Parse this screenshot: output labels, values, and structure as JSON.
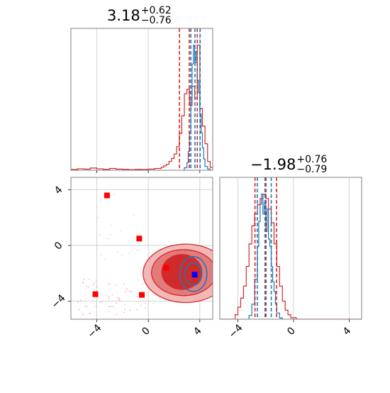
{
  "chart_data": [
    {
      "type": "histogram",
      "panel": "top-left",
      "title": {
        "value": "3.18",
        "upper": "+0.62",
        "lower": "−0.76"
      },
      "xlim": [
        -6,
        5
      ],
      "x_ticks": [
        -4,
        0,
        4
      ],
      "tick_labels_shown": false,
      "grid": true,
      "series": [
        {
          "color": "#d62728",
          "bins": [
            -6,
            -5.5,
            -5,
            -4.5,
            -4,
            -3.5,
            -3,
            -2.5,
            -2,
            -1.5,
            -1,
            -0.5,
            0,
            0.5,
            1,
            1.2,
            1.4,
            1.6,
            1.8,
            2,
            2.2,
            2.4,
            2.6,
            2.8,
            3,
            3.2,
            3.4,
            3.6,
            3.8,
            4,
            4.2,
            4.4,
            4.6,
            4.8,
            5
          ],
          "counts": [
            0.5,
            1,
            0.8,
            1.5,
            1,
            0.6,
            1.2,
            0.8,
            0.6,
            0.4,
            0.6,
            0.5,
            0.8,
            1.2,
            2,
            3,
            4,
            6,
            8,
            11,
            16,
            25,
            37,
            52,
            55,
            44,
            57,
            49,
            85,
            42,
            30,
            18,
            6,
            2
          ]
        },
        {
          "color": "#1f77b4",
          "bins": [
            2.8,
            3,
            3.1,
            3.2,
            3.3,
            3.4,
            3.5,
            3.6,
            3.7,
            3.8,
            3.9,
            4,
            4.1,
            4.2,
            4.3,
            4.4,
            4.6,
            4.8
          ],
          "counts": [
            2,
            6,
            15,
            30,
            58,
            85,
            100,
            86,
            95,
            72,
            62,
            45,
            30,
            18,
            9,
            3,
            1
          ]
        }
      ],
      "quantile_lines": [
        {
          "color": "#d62728",
          "x": [
            2.42,
            3.18,
            3.8
          ]
        },
        {
          "color": "#1f77b4",
          "x": [
            3.3,
            3.62,
            4.02
          ]
        }
      ]
    },
    {
      "type": "scatter",
      "panel": "bottom-left",
      "xlim": [
        -6,
        5
      ],
      "ylim": [
        -5.3,
        4.9
      ],
      "x_ticks": [
        -4,
        0,
        4
      ],
      "x_tick_labels": [
        "−4",
        "0",
        "4"
      ],
      "y_ticks": [
        -4,
        0,
        4
      ],
      "y_tick_labels": [
        "−4",
        "0",
        "4"
      ],
      "grid": true,
      "red_markers": [
        {
          "x": -3.2,
          "y": 3.6
        },
        {
          "x": -0.7,
          "y": 0.5
        },
        {
          "x": 1.4,
          "y": -1.6
        },
        {
          "x": -4.1,
          "y": -3.5
        },
        {
          "x": -0.5,
          "y": -3.55
        }
      ],
      "blue_markers": [
        {
          "x": 3.6,
          "y": -2.1
        }
      ],
      "red_contours": [
        {
          "cx": 2.9,
          "cy": -2.0,
          "rx": 3.3,
          "ry": 2.1,
          "fill": "#f2b8b8"
        },
        {
          "cx": 2.75,
          "cy": -1.95,
          "rx": 2.5,
          "ry": 1.65,
          "fill": "#e47b7b"
        },
        {
          "cx": 2.6,
          "cy": -1.9,
          "rx": 1.55,
          "ry": 1.25,
          "fill": "#cf2b2b"
        }
      ],
      "blue_contours": [
        {
          "cx": 3.5,
          "cy": -2.05,
          "rx": 1.05,
          "ry": 1.25
        },
        {
          "cx": 3.5,
          "cy": -2.05,
          "rx": 0.65,
          "ry": 0.8
        }
      ]
    },
    {
      "type": "histogram",
      "panel": "bottom-right",
      "title": {
        "value": "−1.98",
        "upper": "+0.76",
        "lower": "−0.79"
      },
      "xlim": [
        -5.3,
        4.9
      ],
      "x_ticks": [
        -4,
        0,
        4
      ],
      "x_tick_labels": [
        "−4",
        "0",
        "4"
      ],
      "grid": true,
      "series": [
        {
          "color": "#d62728",
          "bins": [
            -5.3,
            -4.2,
            -4,
            -3.8,
            -3.6,
            -3.4,
            -3.2,
            -3,
            -2.8,
            -2.6,
            -2.4,
            -2.2,
            -2,
            -1.8,
            -1.6,
            -1.4,
            -1.2,
            -1,
            -0.8,
            -0.6,
            -0.4,
            -0.2,
            0.2,
            4.9
          ],
          "counts": [
            0,
            3,
            8,
            14,
            22,
            35,
            50,
            62,
            70,
            76,
            80,
            83,
            80,
            73,
            64,
            50,
            35,
            22,
            12,
            6,
            3,
            1,
            0
          ]
        },
        {
          "color": "#1f77b4",
          "bins": [
            -3.2,
            -3,
            -2.8,
            -2.6,
            -2.5,
            -2.4,
            -2.3,
            -2.2,
            -2.1,
            -2,
            -1.9,
            -1.8,
            -1.7,
            -1.6,
            -1.5,
            -1.4,
            -1.3,
            -1.2,
            -1,
            -0.8
          ],
          "counts": [
            3,
            12,
            32,
            58,
            78,
            92,
            100,
            84,
            93,
            70,
            88,
            64,
            58,
            42,
            30,
            22,
            12,
            5,
            1
          ]
        }
      ],
      "quantile_lines": [
        {
          "color": "#d62728",
          "x": [
            -2.77,
            -1.98,
            -1.22
          ]
        },
        {
          "color": "#1f77b4",
          "x": [
            -2.6,
            -2.05,
            -1.6
          ]
        }
      ]
    }
  ]
}
